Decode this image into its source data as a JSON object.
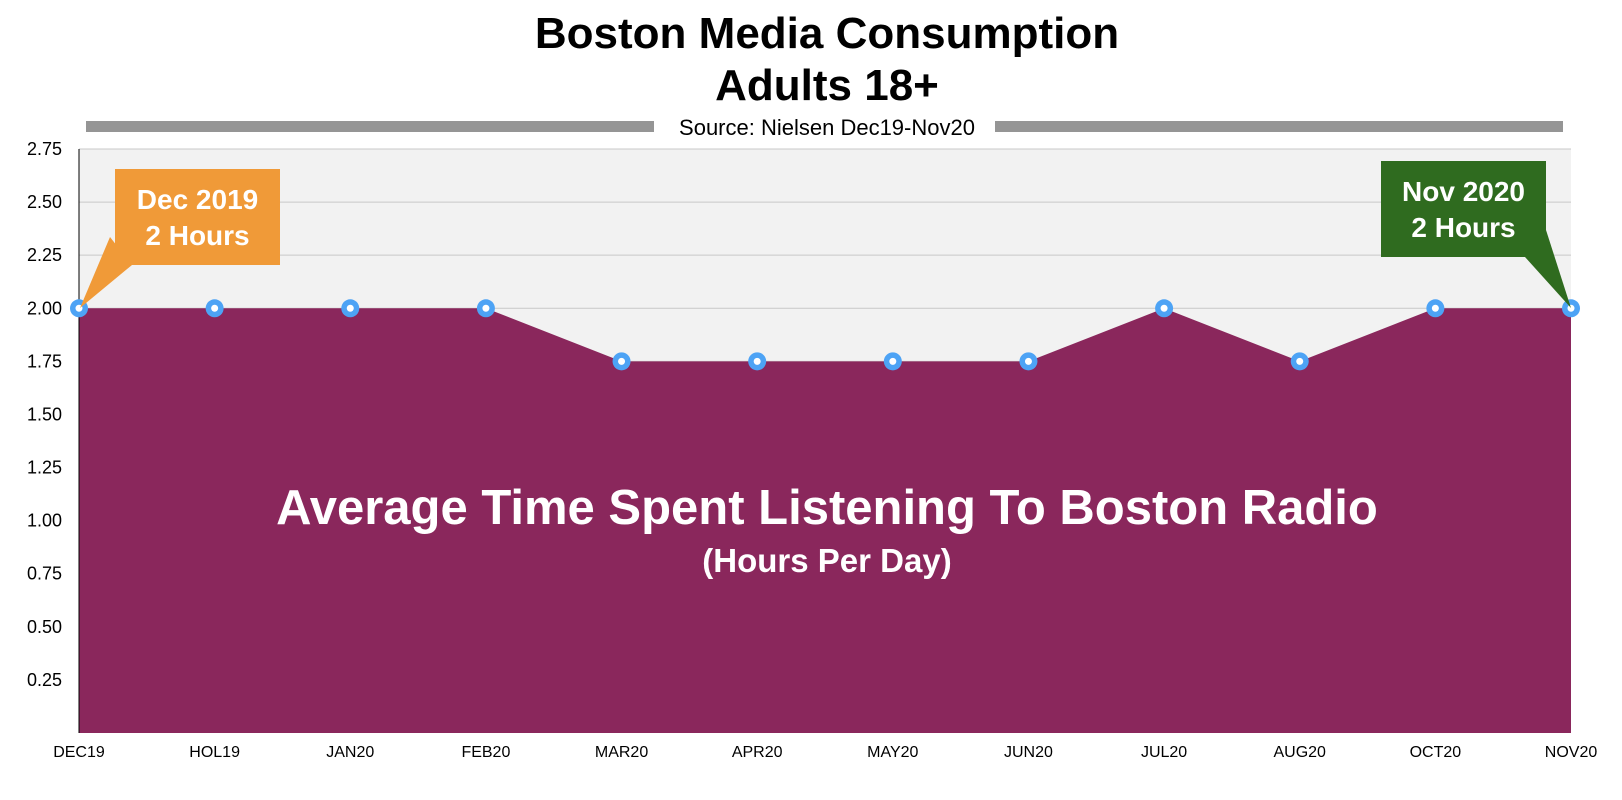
{
  "chart_data": {
    "type": "area",
    "title": "Boston Media Consumption",
    "subtitle": "Adults 18+",
    "source": "Source: Nielsen Dec19-Nov20",
    "categories": [
      "DEC19",
      "HOL19",
      "JAN20",
      "FEB20",
      "MAR20",
      "APR20",
      "MAY20",
      "JUN20",
      "JUL20",
      "AUG20",
      "OCT20",
      "NOV20"
    ],
    "series": [
      {
        "values": [
          2.0,
          2.0,
          2.0,
          2.0,
          1.75,
          1.75,
          1.75,
          1.75,
          2.0,
          1.75,
          2.0,
          2.0
        ]
      }
    ],
    "yticks": [
      "2.75",
      "2.50",
      "2.25",
      "2.00",
      "1.75",
      "1.50",
      "1.25",
      "1.00",
      "0.75",
      "0.50",
      "0.25"
    ],
    "ylim": [
      0,
      2.75
    ],
    "grid": true,
    "inner_label": "Average Time Spent Listening To Boston Radio",
    "inner_sublabel": "(Hours Per Day)",
    "annotations": [
      {
        "line1": "Dec 2019",
        "line2": "2 Hours",
        "index": 0,
        "color": "#f09a38"
      },
      {
        "line1": "Nov 2020",
        "line2": "2 Hours",
        "index": 11,
        "color": "#2f6b1f"
      }
    ],
    "colors": {
      "fill": "#8a275c",
      "marker": "#4da3f5",
      "plot_bg": "#f2f2f2",
      "grid": "#c8c8c8",
      "rule": "#959595"
    }
  }
}
